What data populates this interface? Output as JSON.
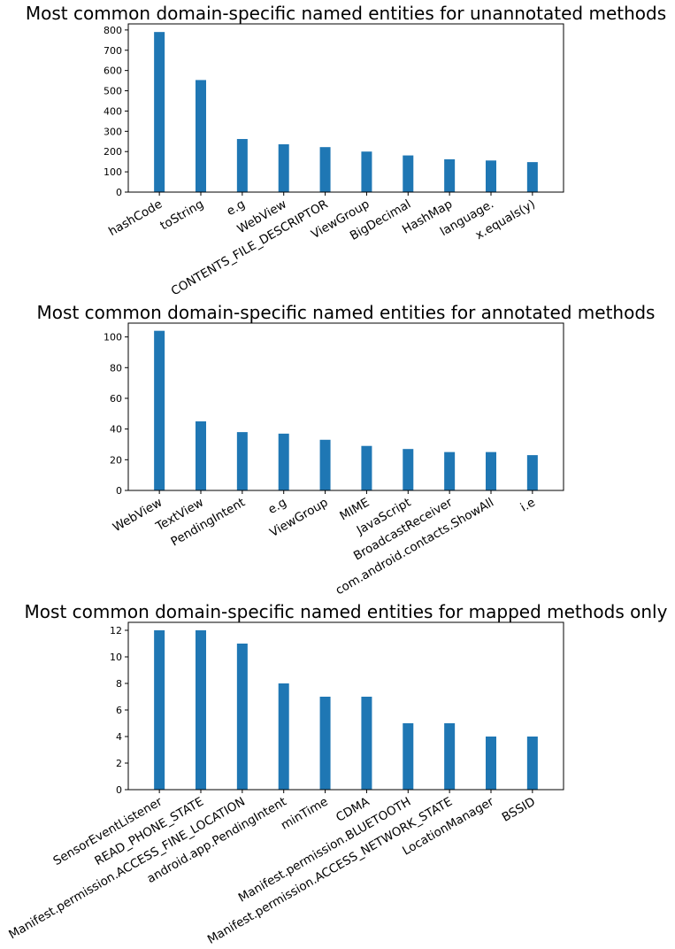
{
  "chart_data": [
    {
      "type": "bar",
      "title": "Most common domain-specific named entities for unannotated methods",
      "xlabel": "",
      "ylabel": "",
      "categories": [
        "hashCode",
        "toString",
        "e.g",
        "WebView",
        "CONTENTS_FILE_DESCRIPTOR",
        "ViewGroup",
        "BigDecimal",
        "HashMap",
        "language.",
        "x.equals(y)"
      ],
      "values": [
        790,
        553,
        262,
        236,
        222,
        200,
        181,
        162,
        156,
        148
      ],
      "ylim": [
        0,
        830
      ],
      "yticks": [
        0,
        100,
        200,
        300,
        400,
        500,
        600,
        700,
        800
      ],
      "bar_color": "#1f77b4",
      "grid": false
    },
    {
      "type": "bar",
      "title": "Most common domain-specific named entities for annotated methods",
      "xlabel": "",
      "ylabel": "",
      "categories": [
        "WebView",
        "TextView",
        "PendingIntent",
        "e.g",
        "ViewGroup",
        "MIME",
        "JavaScript",
        "BroadcastReceiver",
        "com.android.contacts.ShowAll",
        "i.e"
      ],
      "values": [
        104,
        45,
        38,
        37,
        33,
        29,
        27,
        25,
        25,
        23
      ],
      "ylim": [
        0,
        109
      ],
      "yticks": [
        0,
        20,
        40,
        60,
        80,
        100
      ],
      "bar_color": "#1f77b4",
      "grid": false
    },
    {
      "type": "bar",
      "title": "Most common domain-specific named entities for mapped methods only",
      "xlabel": "",
      "ylabel": "",
      "categories": [
        "SensorEventListener",
        "READ_PHONE_STATE",
        "Manifest.permission.ACCESS_FINE_LOCATION",
        "android.app.PendingIntent",
        "minTime",
        "CDMA",
        "Manifest.permission.BLUETOOTH",
        "Manifest.permission.ACCESS_NETWORK_STATE",
        "LocationManager",
        "BSSID"
      ],
      "values": [
        12,
        12,
        11,
        8,
        7,
        7,
        5,
        5,
        4,
        4
      ],
      "ylim": [
        0,
        12.6
      ],
      "yticks": [
        0,
        2,
        4,
        6,
        8,
        10,
        12
      ],
      "bar_color": "#1f77b4",
      "grid": false
    }
  ]
}
